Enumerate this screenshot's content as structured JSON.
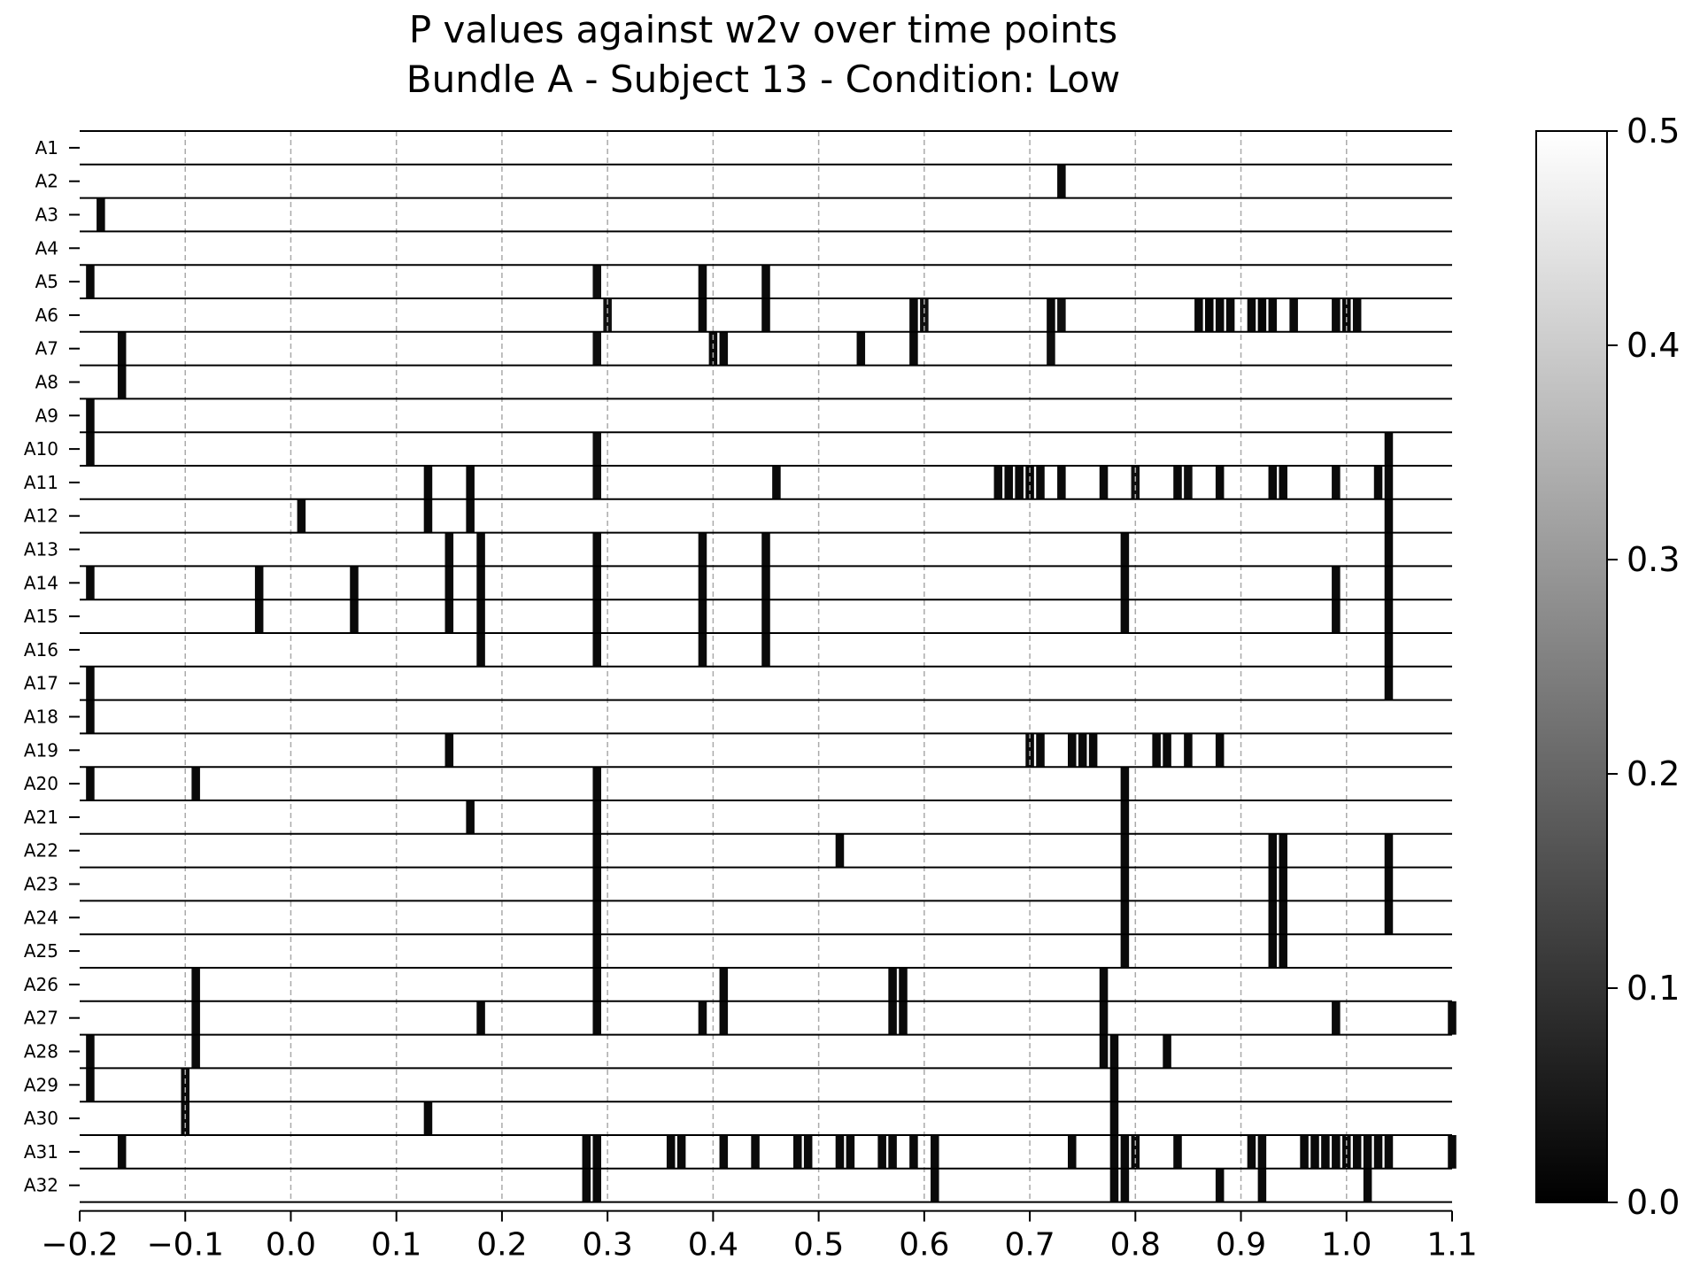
{
  "chart_data": {
    "type": "heatmap",
    "title_lines": [
      "P values against w2v over time points",
      "Bundle A - Subject 13 - Condition: Low"
    ],
    "xlabel": "",
    "ylabel": "",
    "x_range": [
      -0.2,
      1.1
    ],
    "x_ticks": [
      "−0.2",
      "−0.1",
      "0.0",
      "0.1",
      "0.2",
      "0.3",
      "0.4",
      "0.5",
      "0.6",
      "0.7",
      "0.8",
      "0.9",
      "1.0",
      "1.1"
    ],
    "x_tick_values": [
      -0.2,
      -0.1,
      0.0,
      0.1,
      0.2,
      0.3,
      0.4,
      0.5,
      0.6,
      0.7,
      0.8,
      0.9,
      1.0,
      1.1
    ],
    "vertical_grid": true,
    "colorbar": {
      "range": [
        0.0,
        0.5
      ],
      "ticks": [
        "0.0",
        "0.1",
        "0.2",
        "0.3",
        "0.4",
        "0.5"
      ],
      "tick_values": [
        0.0,
        0.1,
        0.2,
        0.3,
        0.4,
        0.5
      ],
      "colors": [
        "#000000",
        "#ffffff"
      ]
    },
    "cell_width": 0.008,
    "default_value": 0.5,
    "rows": [
      {
        "label": "A1",
        "cells": []
      },
      {
        "label": "A2",
        "cells": [
          [
            0.73,
            0.02
          ]
        ]
      },
      {
        "label": "A3",
        "cells": [
          [
            -0.18,
            0.02
          ]
        ]
      },
      {
        "label": "A4",
        "cells": []
      },
      {
        "label": "A5",
        "cells": [
          [
            -0.19,
            0.02
          ],
          [
            0.29,
            0.03
          ],
          [
            0.39,
            0.02
          ],
          [
            0.45,
            0.02
          ]
        ]
      },
      {
        "label": "A6",
        "cells": [
          [
            0.3,
            0.03
          ],
          [
            0.39,
            0.02
          ],
          [
            0.45,
            0.02
          ],
          [
            0.59,
            0.02
          ],
          [
            0.6,
            0.03
          ],
          [
            0.72,
            0.02
          ],
          [
            0.73,
            0.03
          ],
          [
            0.86,
            0.02
          ],
          [
            0.87,
            0.01
          ],
          [
            0.88,
            0.02
          ],
          [
            0.89,
            0.02
          ],
          [
            0.91,
            0.02
          ],
          [
            0.92,
            0.01
          ],
          [
            0.93,
            0.02
          ],
          [
            0.95,
            0.02
          ],
          [
            0.99,
            0.02
          ],
          [
            1.0,
            0.02
          ],
          [
            1.01,
            0.02
          ]
        ]
      },
      {
        "label": "A7",
        "cells": [
          [
            -0.16,
            0.02
          ],
          [
            0.29,
            0.03
          ],
          [
            0.4,
            0.02
          ],
          [
            0.41,
            0.02
          ],
          [
            0.54,
            0.02
          ],
          [
            0.59,
            0.02
          ],
          [
            0.72,
            0.03
          ]
        ]
      },
      {
        "label": "A8",
        "cells": [
          [
            -0.16,
            0.02
          ]
        ]
      },
      {
        "label": "A9",
        "cells": [
          [
            -0.19,
            0.02
          ]
        ]
      },
      {
        "label": "A10",
        "cells": [
          [
            -0.19,
            0.02
          ],
          [
            0.29,
            0.03
          ],
          [
            1.04,
            0.02
          ]
        ]
      },
      {
        "label": "A11",
        "cells": [
          [
            0.13,
            0.02
          ],
          [
            0.17,
            0.02
          ],
          [
            0.29,
            0.03
          ],
          [
            0.46,
            0.02
          ],
          [
            0.67,
            0.02
          ],
          [
            0.68,
            0.02
          ],
          [
            0.69,
            0.02
          ],
          [
            0.7,
            0.01
          ],
          [
            0.71,
            0.02
          ],
          [
            0.73,
            0.02
          ],
          [
            0.77,
            0.02
          ],
          [
            0.8,
            0.03
          ],
          [
            0.84,
            0.02
          ],
          [
            0.85,
            0.03
          ],
          [
            0.88,
            0.02
          ],
          [
            0.93,
            0.02
          ],
          [
            0.94,
            0.02
          ],
          [
            0.99,
            0.02
          ],
          [
            1.03,
            0.02
          ],
          [
            1.04,
            0.02
          ]
        ]
      },
      {
        "label": "A12",
        "cells": [
          [
            0.01,
            0.02
          ],
          [
            0.13,
            0.02
          ],
          [
            0.17,
            0.02
          ],
          [
            1.04,
            0.02
          ]
        ]
      },
      {
        "label": "A13",
        "cells": [
          [
            0.15,
            0.02
          ],
          [
            0.18,
            0.02
          ],
          [
            0.29,
            0.02
          ],
          [
            0.39,
            0.02
          ],
          [
            0.45,
            0.02
          ],
          [
            0.79,
            0.02
          ],
          [
            1.04,
            0.02
          ]
        ]
      },
      {
        "label": "A14",
        "cells": [
          [
            -0.19,
            0.02
          ],
          [
            -0.03,
            0.02
          ],
          [
            0.06,
            0.02
          ],
          [
            0.15,
            0.02
          ],
          [
            0.18,
            0.02
          ],
          [
            0.29,
            0.02
          ],
          [
            0.39,
            0.02
          ],
          [
            0.45,
            0.02
          ],
          [
            0.79,
            0.02
          ],
          [
            0.99,
            0.02
          ],
          [
            1.04,
            0.02
          ]
        ]
      },
      {
        "label": "A15",
        "cells": [
          [
            -0.03,
            0.02
          ],
          [
            0.06,
            0.02
          ],
          [
            0.15,
            0.02
          ],
          [
            0.18,
            0.02
          ],
          [
            0.29,
            0.02
          ],
          [
            0.39,
            0.02
          ],
          [
            0.45,
            0.02
          ],
          [
            0.79,
            0.02
          ],
          [
            0.99,
            0.02
          ],
          [
            1.04,
            0.02
          ]
        ]
      },
      {
        "label": "A16",
        "cells": [
          [
            0.18,
            0.02
          ],
          [
            0.29,
            0.02
          ],
          [
            0.39,
            0.02
          ],
          [
            0.45,
            0.02
          ],
          [
            1.04,
            0.02
          ]
        ]
      },
      {
        "label": "A17",
        "cells": [
          [
            -0.19,
            0.02
          ],
          [
            1.04,
            0.02
          ]
        ]
      },
      {
        "label": "A18",
        "cells": [
          [
            -0.19,
            0.02
          ]
        ]
      },
      {
        "label": "A19",
        "cells": [
          [
            0.15,
            0.02
          ],
          [
            0.7,
            0.02
          ],
          [
            0.71,
            0.02
          ],
          [
            0.74,
            0.02
          ],
          [
            0.75,
            0.02
          ],
          [
            0.76,
            0.02
          ],
          [
            0.82,
            0.02
          ],
          [
            0.83,
            0.02
          ],
          [
            0.85,
            0.02
          ],
          [
            0.88,
            0.02
          ]
        ]
      },
      {
        "label": "A20",
        "cells": [
          [
            -0.19,
            0.02
          ],
          [
            -0.09,
            0.02
          ],
          [
            0.29,
            0.02
          ],
          [
            0.79,
            0.02
          ]
        ]
      },
      {
        "label": "A21",
        "cells": [
          [
            0.17,
            0.02
          ],
          [
            0.29,
            0.02
          ],
          [
            0.79,
            0.02
          ]
        ]
      },
      {
        "label": "A22",
        "cells": [
          [
            0.29,
            0.02
          ],
          [
            0.52,
            0.02
          ],
          [
            0.79,
            0.02
          ],
          [
            0.93,
            0.02
          ],
          [
            0.94,
            0.02
          ],
          [
            1.04,
            0.02
          ]
        ]
      },
      {
        "label": "A23",
        "cells": [
          [
            0.29,
            0.02
          ],
          [
            0.79,
            0.02
          ],
          [
            0.93,
            0.02
          ],
          [
            0.94,
            0.02
          ],
          [
            1.04,
            0.02
          ]
        ]
      },
      {
        "label": "A24",
        "cells": [
          [
            0.29,
            0.02
          ],
          [
            0.79,
            0.02
          ],
          [
            0.93,
            0.02
          ],
          [
            0.94,
            0.02
          ],
          [
            1.04,
            0.02
          ]
        ]
      },
      {
        "label": "A25",
        "cells": [
          [
            0.29,
            0.02
          ],
          [
            0.79,
            0.02
          ],
          [
            0.93,
            0.02
          ],
          [
            0.94,
            0.02
          ]
        ]
      },
      {
        "label": "A26",
        "cells": [
          [
            -0.09,
            0.02
          ],
          [
            0.29,
            0.02
          ],
          [
            0.41,
            0.02
          ],
          [
            0.57,
            0.02
          ],
          [
            0.58,
            0.02
          ],
          [
            0.77,
            0.02
          ]
        ]
      },
      {
        "label": "A27",
        "cells": [
          [
            -0.09,
            0.02
          ],
          [
            0.18,
            0.02
          ],
          [
            0.29,
            0.02
          ],
          [
            0.39,
            0.02
          ],
          [
            0.41,
            0.02
          ],
          [
            0.57,
            0.02
          ],
          [
            0.58,
            0.02
          ],
          [
            0.77,
            0.02
          ],
          [
            0.99,
            0.02
          ],
          [
            1.1,
            0.02
          ]
        ]
      },
      {
        "label": "A28",
        "cells": [
          [
            -0.19,
            0.02
          ],
          [
            -0.09,
            0.02
          ],
          [
            0.77,
            0.02
          ],
          [
            0.78,
            0.02
          ],
          [
            0.83,
            0.02
          ]
        ]
      },
      {
        "label": "A29",
        "cells": [
          [
            -0.19,
            0.02
          ],
          [
            -0.1,
            0.02
          ],
          [
            0.78,
            0.02
          ]
        ]
      },
      {
        "label": "A30",
        "cells": [
          [
            -0.1,
            0.02
          ],
          [
            0.13,
            0.02
          ],
          [
            0.78,
            0.02
          ]
        ]
      },
      {
        "label": "A31",
        "cells": [
          [
            -0.16,
            0.02
          ],
          [
            0.28,
            0.02
          ],
          [
            0.29,
            0.02
          ],
          [
            0.36,
            0.02
          ],
          [
            0.37,
            0.02
          ],
          [
            0.41,
            0.02
          ],
          [
            0.44,
            0.02
          ],
          [
            0.48,
            0.02
          ],
          [
            0.49,
            0.02
          ],
          [
            0.52,
            0.02
          ],
          [
            0.53,
            0.02
          ],
          [
            0.56,
            0.02
          ],
          [
            0.57,
            0.02
          ],
          [
            0.59,
            0.02
          ],
          [
            0.61,
            0.02
          ],
          [
            0.74,
            0.02
          ],
          [
            0.78,
            0.02
          ],
          [
            0.79,
            0.02
          ],
          [
            0.8,
            0.02
          ],
          [
            0.84,
            0.02
          ],
          [
            0.91,
            0.02
          ],
          [
            0.92,
            0.02
          ],
          [
            0.96,
            0.02
          ],
          [
            0.97,
            0.02
          ],
          [
            0.98,
            0.02
          ],
          [
            0.99,
            0.02
          ],
          [
            1.0,
            0.02
          ],
          [
            1.01,
            0.02
          ],
          [
            1.02,
            0.02
          ],
          [
            1.03,
            0.02
          ],
          [
            1.04,
            0.02
          ],
          [
            1.1,
            0.02
          ]
        ]
      },
      {
        "label": "A32",
        "cells": [
          [
            0.28,
            0.02
          ],
          [
            0.29,
            0.02
          ],
          [
            0.61,
            0.02
          ],
          [
            0.78,
            0.02
          ],
          [
            0.79,
            0.02
          ],
          [
            0.88,
            0.02
          ],
          [
            0.92,
            0.02
          ],
          [
            1.02,
            0.02
          ]
        ]
      }
    ]
  }
}
